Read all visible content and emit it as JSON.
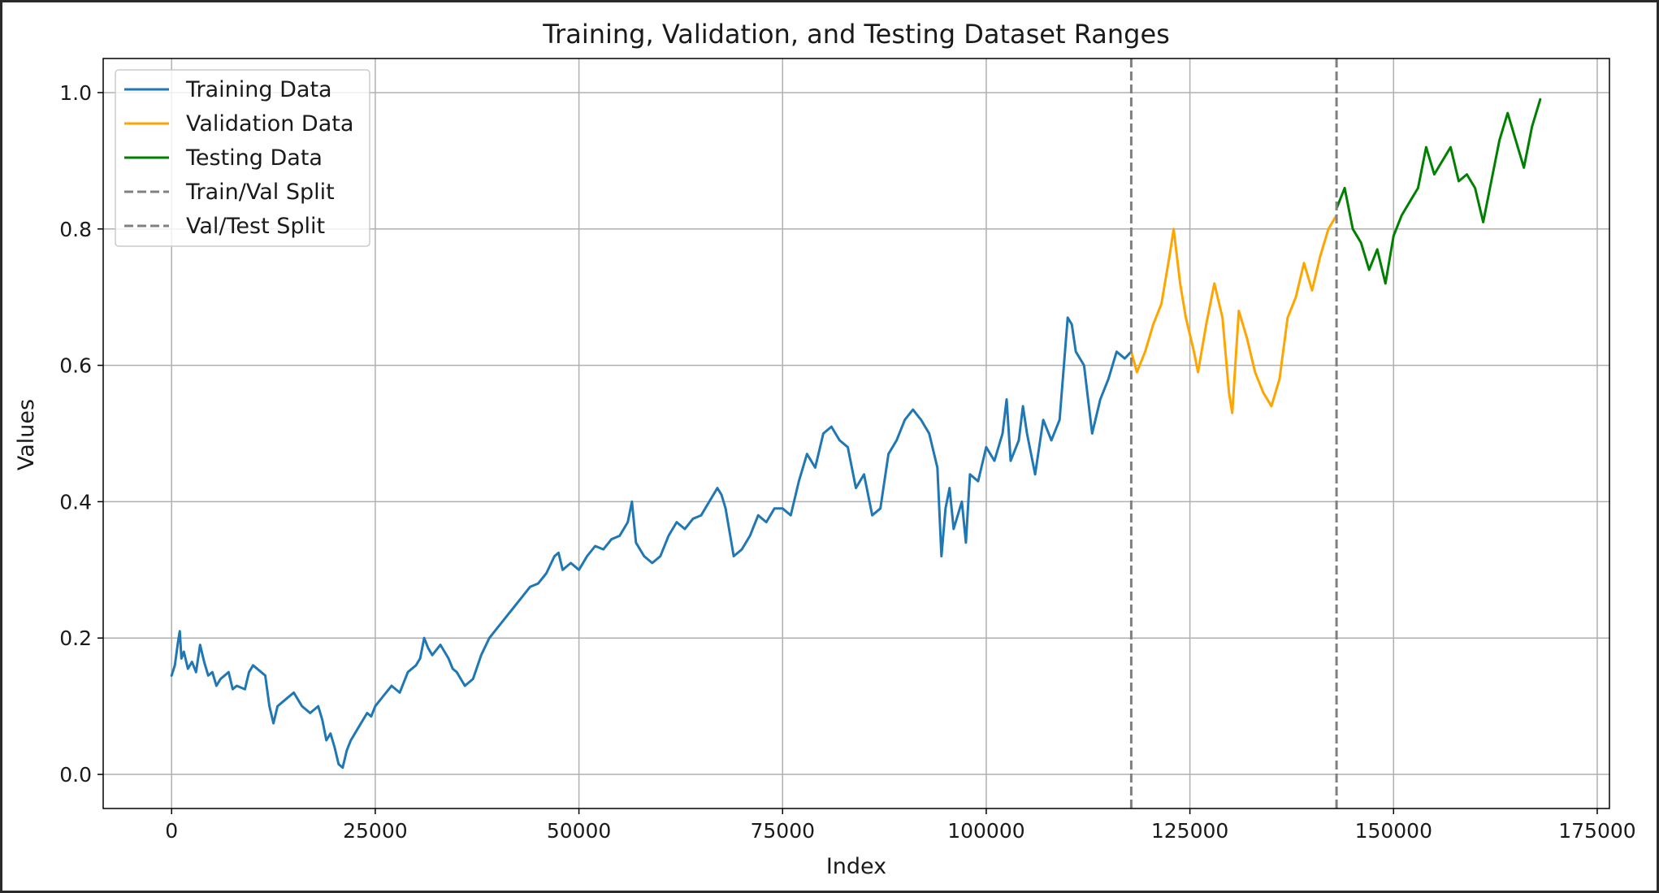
{
  "chart_data": {
    "type": "line",
    "title": "Training, Validation, and Testing Dataset Ranges",
    "xlabel": "Index",
    "ylabel": "Values",
    "xlim": [
      -8400,
      176500
    ],
    "ylim": [
      -0.05,
      1.05
    ],
    "xticks": [
      0,
      25000,
      50000,
      75000,
      100000,
      125000,
      150000,
      175000
    ],
    "yticks": [
      0.0,
      0.2,
      0.4,
      0.6,
      0.8,
      1.0
    ],
    "grid": true,
    "legend_position": "upper left",
    "colors": {
      "training": "#1f77b4",
      "validation": "#ffa500",
      "testing": "#008000",
      "split": "#808080",
      "grid": "#b0b0b0",
      "frame": "#000000"
    },
    "split_lines": [
      {
        "name": "Train/Val Split",
        "x": 117800
      },
      {
        "name": "Val/Test Split",
        "x": 143000
      }
    ],
    "series": [
      {
        "name": "Training Data",
        "points": [
          [
            0,
            0.145
          ],
          [
            400,
            0.16
          ],
          [
            800,
            0.195
          ],
          [
            1000,
            0.21
          ],
          [
            1200,
            0.17
          ],
          [
            1500,
            0.18
          ],
          [
            2000,
            0.155
          ],
          [
            2500,
            0.165
          ],
          [
            3000,
            0.15
          ],
          [
            3500,
            0.19
          ],
          [
            4000,
            0.165
          ],
          [
            4500,
            0.145
          ],
          [
            5000,
            0.15
          ],
          [
            5500,
            0.13
          ],
          [
            6000,
            0.14
          ],
          [
            7000,
            0.15
          ],
          [
            7500,
            0.125
          ],
          [
            8000,
            0.13
          ],
          [
            9000,
            0.125
          ],
          [
            9500,
            0.15
          ],
          [
            10000,
            0.16
          ],
          [
            11000,
            0.15
          ],
          [
            11500,
            0.145
          ],
          [
            12000,
            0.1
          ],
          [
            12500,
            0.075
          ],
          [
            13000,
            0.1
          ],
          [
            14000,
            0.11
          ],
          [
            15000,
            0.12
          ],
          [
            15500,
            0.11
          ],
          [
            16000,
            0.1
          ],
          [
            17000,
            0.09
          ],
          [
            18000,
            0.1
          ],
          [
            18500,
            0.08
          ],
          [
            19000,
            0.05
          ],
          [
            19500,
            0.06
          ],
          [
            20000,
            0.04
          ],
          [
            20500,
            0.015
          ],
          [
            21000,
            0.01
          ],
          [
            21500,
            0.035
          ],
          [
            22000,
            0.05
          ],
          [
            23000,
            0.07
          ],
          [
            24000,
            0.09
          ],
          [
            24500,
            0.085
          ],
          [
            25000,
            0.1
          ],
          [
            26000,
            0.115
          ],
          [
            27000,
            0.13
          ],
          [
            28000,
            0.12
          ],
          [
            29000,
            0.15
          ],
          [
            30000,
            0.16
          ],
          [
            30500,
            0.17
          ],
          [
            31000,
            0.2
          ],
          [
            31500,
            0.185
          ],
          [
            32000,
            0.175
          ],
          [
            33000,
            0.19
          ],
          [
            34000,
            0.17
          ],
          [
            34500,
            0.155
          ],
          [
            35000,
            0.15
          ],
          [
            36000,
            0.13
          ],
          [
            37000,
            0.14
          ],
          [
            38000,
            0.175
          ],
          [
            39000,
            0.2
          ],
          [
            40000,
            0.215
          ],
          [
            41000,
            0.23
          ],
          [
            42000,
            0.245
          ],
          [
            43000,
            0.26
          ],
          [
            44000,
            0.275
          ],
          [
            45000,
            0.28
          ],
          [
            46000,
            0.295
          ],
          [
            47000,
            0.32
          ],
          [
            47500,
            0.325
          ],
          [
            48000,
            0.3
          ],
          [
            49000,
            0.31
          ],
          [
            50000,
            0.3
          ],
          [
            51000,
            0.32
          ],
          [
            52000,
            0.335
          ],
          [
            53000,
            0.33
          ],
          [
            54000,
            0.345
          ],
          [
            55000,
            0.35
          ],
          [
            56000,
            0.37
          ],
          [
            56500,
            0.4
          ],
          [
            57000,
            0.34
          ],
          [
            58000,
            0.32
          ],
          [
            59000,
            0.31
          ],
          [
            60000,
            0.32
          ],
          [
            61000,
            0.35
          ],
          [
            62000,
            0.37
          ],
          [
            63000,
            0.36
          ],
          [
            64000,
            0.375
          ],
          [
            65000,
            0.38
          ],
          [
            66000,
            0.4
          ],
          [
            67000,
            0.42
          ],
          [
            67500,
            0.41
          ],
          [
            68000,
            0.39
          ],
          [
            69000,
            0.32
          ],
          [
            70000,
            0.33
          ],
          [
            71000,
            0.35
          ],
          [
            72000,
            0.38
          ],
          [
            73000,
            0.37
          ],
          [
            74000,
            0.39
          ],
          [
            75000,
            0.39
          ],
          [
            76000,
            0.38
          ],
          [
            77000,
            0.43
          ],
          [
            78000,
            0.47
          ],
          [
            79000,
            0.45
          ],
          [
            80000,
            0.5
          ],
          [
            81000,
            0.51
          ],
          [
            82000,
            0.49
          ],
          [
            83000,
            0.48
          ],
          [
            84000,
            0.42
          ],
          [
            85000,
            0.44
          ],
          [
            86000,
            0.38
          ],
          [
            87000,
            0.39
          ],
          [
            88000,
            0.47
          ],
          [
            89000,
            0.49
          ],
          [
            90000,
            0.52
          ],
          [
            91000,
            0.535
          ],
          [
            92000,
            0.52
          ],
          [
            93000,
            0.5
          ],
          [
            94000,
            0.45
          ],
          [
            94500,
            0.32
          ],
          [
            95000,
            0.39
          ],
          [
            95500,
            0.42
          ],
          [
            96000,
            0.36
          ],
          [
            97000,
            0.4
          ],
          [
            97500,
            0.34
          ],
          [
            98000,
            0.44
          ],
          [
            99000,
            0.43
          ],
          [
            100000,
            0.48
          ],
          [
            101000,
            0.46
          ],
          [
            102000,
            0.5
          ],
          [
            102500,
            0.55
          ],
          [
            103000,
            0.46
          ],
          [
            104000,
            0.49
          ],
          [
            104500,
            0.54
          ],
          [
            105000,
            0.5
          ],
          [
            106000,
            0.44
          ],
          [
            107000,
            0.52
          ],
          [
            108000,
            0.49
          ],
          [
            109000,
            0.52
          ],
          [
            110000,
            0.67
          ],
          [
            110500,
            0.66
          ],
          [
            111000,
            0.62
          ],
          [
            112000,
            0.6
          ],
          [
            113000,
            0.5
          ],
          [
            114000,
            0.55
          ],
          [
            115000,
            0.58
          ],
          [
            116000,
            0.62
          ],
          [
            117000,
            0.61
          ],
          [
            117800,
            0.62
          ]
        ]
      },
      {
        "name": "Validation Data",
        "points": [
          [
            117800,
            0.62
          ],
          [
            118500,
            0.59
          ],
          [
            119500,
            0.62
          ],
          [
            120500,
            0.66
          ],
          [
            121500,
            0.69
          ],
          [
            122500,
            0.76
          ],
          [
            123000,
            0.8
          ],
          [
            123800,
            0.72
          ],
          [
            124500,
            0.67
          ],
          [
            125500,
            0.62
          ],
          [
            126000,
            0.59
          ],
          [
            127000,
            0.66
          ],
          [
            128000,
            0.72
          ],
          [
            129000,
            0.67
          ],
          [
            129800,
            0.56
          ],
          [
            130200,
            0.53
          ],
          [
            131000,
            0.68
          ],
          [
            132000,
            0.64
          ],
          [
            133000,
            0.59
          ],
          [
            134000,
            0.56
          ],
          [
            135000,
            0.54
          ],
          [
            136000,
            0.58
          ],
          [
            137000,
            0.67
          ],
          [
            138000,
            0.7
          ],
          [
            139000,
            0.75
          ],
          [
            140000,
            0.71
          ],
          [
            141000,
            0.76
          ],
          [
            142000,
            0.8
          ],
          [
            143000,
            0.82
          ]
        ]
      },
      {
        "name": "Testing Data",
        "points": [
          [
            143000,
            0.83
          ],
          [
            144000,
            0.86
          ],
          [
            145000,
            0.8
          ],
          [
            146000,
            0.78
          ],
          [
            147000,
            0.74
          ],
          [
            148000,
            0.77
          ],
          [
            149000,
            0.72
          ],
          [
            150000,
            0.79
          ],
          [
            151000,
            0.82
          ],
          [
            152000,
            0.84
          ],
          [
            153000,
            0.86
          ],
          [
            154000,
            0.92
          ],
          [
            155000,
            0.88
          ],
          [
            156000,
            0.9
          ],
          [
            157000,
            0.92
          ],
          [
            158000,
            0.87
          ],
          [
            159000,
            0.88
          ],
          [
            160000,
            0.86
          ],
          [
            161000,
            0.81
          ],
          [
            162000,
            0.87
          ],
          [
            163000,
            0.93
          ],
          [
            164000,
            0.97
          ],
          [
            165000,
            0.93
          ],
          [
            166000,
            0.89
          ],
          [
            167000,
            0.95
          ],
          [
            168000,
            0.99
          ]
        ]
      }
    ]
  }
}
